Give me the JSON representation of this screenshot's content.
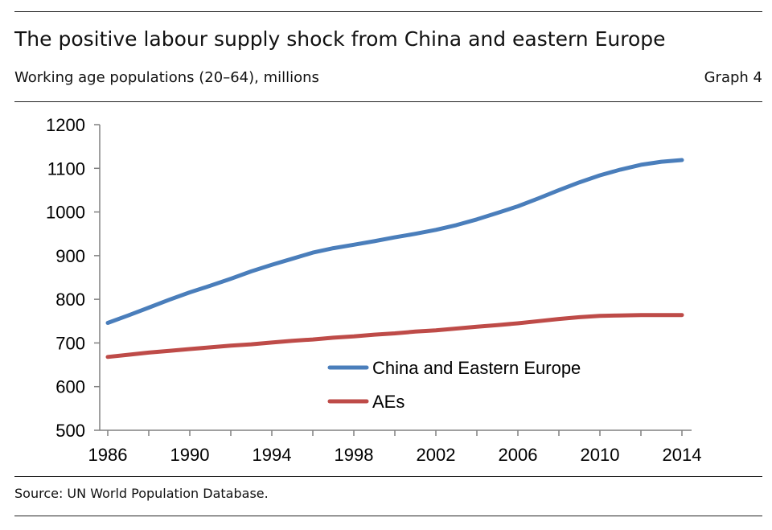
{
  "header": {
    "title": "The positive labour supply shock from China and eastern Europe",
    "subtitle": "Working age populations (20–64), millions",
    "graph_label": "Graph 4"
  },
  "footer": {
    "source": "Source: UN World Population Database."
  },
  "colors": {
    "china": "#4a7ebb",
    "aes": "#be4b48",
    "axis": "#808080"
  },
  "chart_data": {
    "type": "line",
    "title": "The positive labour supply shock from China and eastern Europe",
    "subtitle": "Working age populations (20–64), millions",
    "ylim": [
      500,
      1200
    ],
    "xlim": [
      1986,
      2014
    ],
    "yticks": [
      500,
      600,
      700,
      800,
      900,
      1000,
      1100,
      1200
    ],
    "xticks": [
      1986,
      1990,
      1994,
      1998,
      2002,
      2006,
      2010,
      2014
    ],
    "grid": false,
    "legend_position": "center",
    "x": [
      1986,
      1987,
      1988,
      1989,
      1990,
      1991,
      1992,
      1993,
      1994,
      1995,
      1996,
      1997,
      1998,
      1999,
      2000,
      2001,
      2002,
      2003,
      2004,
      2005,
      2006,
      2007,
      2008,
      2009,
      2010,
      2011,
      2012,
      2013,
      2014
    ],
    "series": [
      {
        "name": "China and Eastern Europe",
        "color": "#4a7ebb",
        "values": [
          746,
          763,
          781,
          799,
          816,
          831,
          847,
          864,
          879,
          893,
          907,
          917,
          925,
          933,
          942,
          950,
          959,
          970,
          983,
          998,
          1013,
          1031,
          1050,
          1068,
          1084,
          1097,
          1108,
          1115,
          1119
        ]
      },
      {
        "name": "AEs",
        "color": "#be4b48",
        "values": [
          668,
          673,
          678,
          682,
          686,
          690,
          694,
          697,
          701,
          705,
          708,
          712,
          715,
          719,
          722,
          726,
          729,
          733,
          737,
          741,
          745,
          750,
          755,
          759,
          762,
          763,
          764,
          764,
          764
        ]
      }
    ]
  }
}
